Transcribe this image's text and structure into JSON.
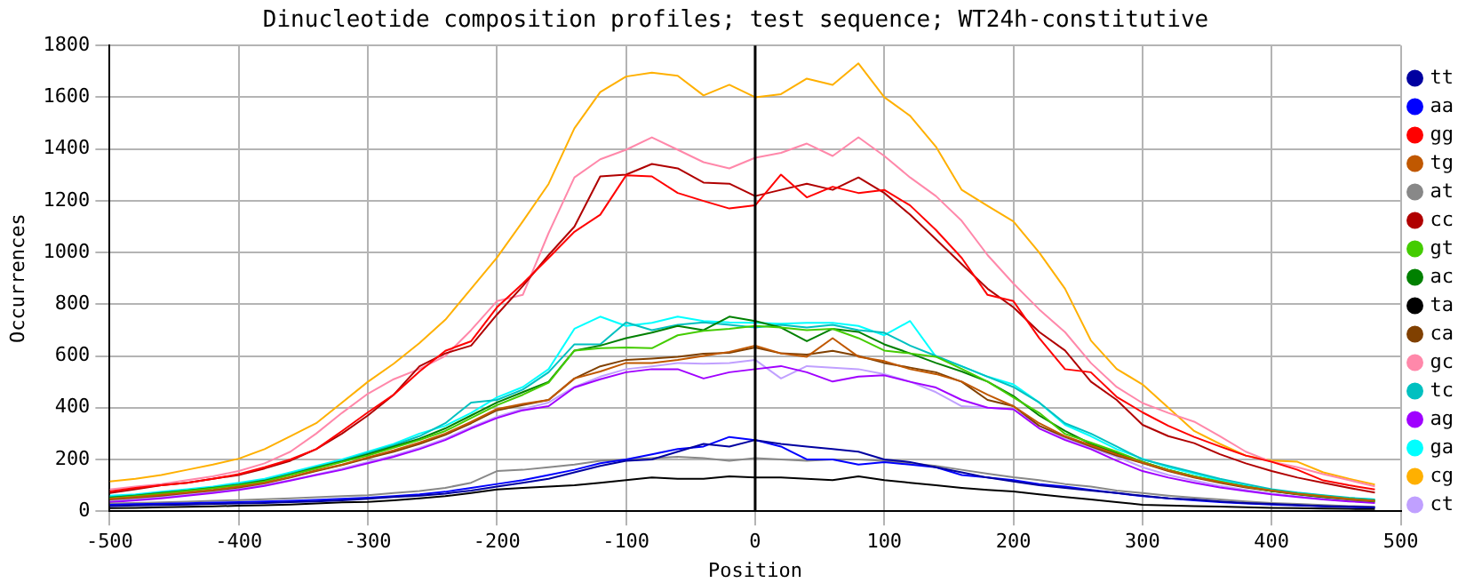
{
  "chart_data": {
    "type": "line",
    "title": "Dinucleotide composition profiles; test sequence; WT24h-constitutive",
    "xlabel": "Position",
    "ylabel": "Occurrences",
    "x": [
      -500,
      -480,
      -460,
      -440,
      -420,
      -400,
      -380,
      -360,
      -340,
      -320,
      -300,
      -280,
      -260,
      -240,
      -220,
      -200,
      -180,
      -160,
      -140,
      -120,
      -100,
      -80,
      -60,
      -40,
      -20,
      0,
      20,
      40,
      60,
      80,
      100,
      120,
      140,
      160,
      180,
      200,
      220,
      240,
      260,
      280,
      300,
      320,
      340,
      360,
      380,
      400,
      420,
      440,
      460,
      480
    ],
    "xlim": [
      -500,
      500
    ],
    "xticks": [
      -500,
      -400,
      -300,
      -200,
      -100,
      0,
      100,
      200,
      300,
      400,
      500
    ],
    "ylim": [
      0,
      1800
    ],
    "yticks": [
      0,
      200,
      400,
      600,
      800,
      1000,
      1200,
      1400,
      1600,
      1800
    ],
    "grid": true,
    "legend": "right",
    "line_style": "solid",
    "ref_lines": [
      {
        "axis": "x",
        "value": 0,
        "color": "#000000"
      }
    ],
    "series": [
      {
        "name": "tt",
        "color": "#0000a0",
        "values": [
          20,
          22,
          24,
          26,
          28,
          30,
          32,
          35,
          38,
          42,
          48,
          55,
          60,
          68,
          80,
          95,
          110,
          125,
          150,
          175,
          195,
          200,
          230,
          260,
          250,
          275,
          260,
          250,
          240,
          230,
          200,
          190,
          170,
          150,
          130,
          115,
          100,
          90,
          80,
          70,
          60,
          50,
          45,
          38,
          32,
          28,
          24,
          20,
          18,
          15
        ]
      },
      {
        "name": "aa",
        "color": "#0000ff",
        "values": [
          25,
          27,
          29,
          31,
          33,
          35,
          38,
          40,
          44,
          48,
          52,
          58,
          65,
          75,
          90,
          105,
          120,
          140,
          160,
          185,
          200,
          220,
          240,
          250,
          287,
          275,
          250,
          200,
          200,
          180,
          190,
          180,
          170,
          140,
          130,
          120,
          105,
          95,
          82,
          70,
          58,
          50,
          42,
          35,
          30,
          26,
          22,
          19,
          16,
          14
        ]
      },
      {
        "name": "gg",
        "color": "#ff0000",
        "values": [
          76,
          90,
          100,
          110,
          125,
          143,
          170,
          200,
          240,
          310,
          382,
          450,
          540,
          620,
          657,
          788,
          880,
          979,
          1080,
          1146,
          1298,
          1294,
          1230,
          1199,
          1170,
          1182,
          1301,
          1213,
          1254,
          1230,
          1242,
          1182,
          1087,
          979,
          836,
          812,
          669,
          549,
          537,
          442,
          382,
          330,
          287,
          250,
          215,
          191,
          160,
          119,
          100,
          84
        ]
      },
      {
        "name": "tg",
        "color": "#c05800",
        "values": [
          48,
          55,
          63,
          72,
          82,
          95,
          110,
          132,
          158,
          180,
          208,
          235,
          265,
          300,
          345,
          395,
          415,
          430,
          513,
          540,
          573,
          573,
          585,
          600,
          616,
          640,
          610,
          597,
          669,
          597,
          580,
          549,
          530,
          501,
          450,
          406,
          340,
          290,
          255,
          220,
          188,
          158,
          132,
          112,
          94,
          80,
          67,
          57,
          47,
          40
        ]
      },
      {
        "name": "at",
        "color": "#888888",
        "values": [
          30,
          32,
          34,
          37,
          40,
          43,
          46,
          50,
          54,
          58,
          62,
          70,
          78,
          90,
          110,
          155,
          160,
          170,
          180,
          195,
          200,
          205,
          210,
          205,
          195,
          205,
          200,
          195,
          200,
          200,
          195,
          185,
          175,
          160,
          145,
          131,
          120,
          105,
          95,
          80,
          70,
          60,
          52,
          45,
          38,
          32,
          28,
          24,
          20,
          17
        ]
      },
      {
        "name": "cc",
        "color": "#b00000",
        "values": [
          70,
          85,
          100,
          110,
          125,
          140,
          165,
          195,
          240,
          300,
          370,
          450,
          560,
          610,
          640,
          760,
          870,
          990,
          1100,
          1294,
          1301,
          1342,
          1325,
          1270,
          1266,
          1218,
          1242,
          1266,
          1242,
          1290,
          1230,
          1146,
          1051,
          955,
          860,
          788,
          693,
          621,
          501,
          430,
          334,
          290,
          263,
          220,
          185,
          155,
          130,
          110,
          90,
          72
        ]
      },
      {
        "name": "gt",
        "color": "#44cc00",
        "values": [
          50,
          58,
          68,
          78,
          88,
          100,
          115,
          140,
          165,
          190,
          215,
          245,
          275,
          310,
          360,
          410,
          450,
          497,
          621,
          630,
          633,
          630,
          680,
          697,
          705,
          716,
          710,
          700,
          705,
          669,
          621,
          610,
          597,
          550,
          501,
          440,
          380,
          299,
          265,
          230,
          191,
          160,
          135,
          115,
          95,
          80,
          68,
          58,
          48,
          40
        ]
      },
      {
        "name": "ac",
        "color": "#008000",
        "values": [
          52,
          60,
          70,
          80,
          90,
          102,
          118,
          142,
          168,
          192,
          220,
          250,
          280,
          320,
          370,
          420,
          460,
          500,
          621,
          640,
          669,
          690,
          716,
          700,
          752,
          735,
          710,
          657,
          705,
          693,
          645,
          610,
          573,
          540,
          501,
          445,
          370,
          310,
          260,
          225,
          191,
          160,
          135,
          112,
          95,
          78,
          66,
          55,
          47,
          40
        ]
      },
      {
        "name": "ta",
        "color": "#000000",
        "values": [
          12,
          13,
          15,
          17,
          19,
          21,
          23,
          26,
          30,
          34,
          36,
          42,
          50,
          58,
          70,
          84,
          90,
          95,
          100,
          110,
          120,
          130,
          125,
          125,
          135,
          130,
          130,
          125,
          120,
          135,
          120,
          110,
          100,
          90,
          82,
          76,
          65,
          55,
          45,
          35,
          25,
          22,
          20,
          18,
          15,
          13,
          12,
          10,
          9,
          8
        ]
      },
      {
        "name": "ca",
        "color": "#804000",
        "values": [
          45,
          52,
          60,
          70,
          80,
          92,
          108,
          130,
          155,
          178,
          205,
          230,
          260,
          295,
          340,
          390,
          410,
          430,
          513,
          560,
          585,
          590,
          597,
          609,
          612,
          633,
          610,
          605,
          620,
          600,
          573,
          555,
          537,
          500,
          430,
          406,
          330,
          287,
          250,
          215,
          186,
          155,
          130,
          110,
          92,
          78,
          65,
          55,
          45,
          38
        ]
      },
      {
        "name": "gc",
        "color": "#ff88aa",
        "values": [
          84,
          95,
          105,
          120,
          135,
          155,
          185,
          230,
          300,
          380,
          454,
          510,
          550,
          600,
          700,
          812,
          836,
          1075,
          1290,
          1360,
          1397,
          1445,
          1397,
          1349,
          1325,
          1366,
          1385,
          1421,
          1373,
          1445,
          1373,
          1290,
          1218,
          1122,
          990,
          880,
          780,
          692,
          573,
          480,
          418,
          380,
          346,
          290,
          230,
          191,
          170,
          143,
          120,
          96
        ]
      },
      {
        "name": "tc",
        "color": "#00c0c0",
        "values": [
          55,
          62,
          72,
          80,
          92,
          105,
          120,
          145,
          170,
          195,
          225,
          255,
          290,
          340,
          420,
          430,
          470,
          537,
          645,
          645,
          730,
          700,
          720,
          730,
          720,
          710,
          720,
          710,
          720,
          700,
          690,
          640,
          600,
          560,
          520,
          480,
          420,
          340,
          300,
          250,
          200,
          175,
          150,
          125,
          105,
          85,
          72,
          62,
          52,
          45
        ]
      },
      {
        "name": "ag",
        "color": "#a000ff",
        "values": [
          35,
          42,
          50,
          60,
          70,
          82,
          98,
          118,
          140,
          160,
          185,
          210,
          240,
          275,
          320,
          360,
          390,
          406,
          478,
          510,
          537,
          549,
          549,
          513,
          537,
          549,
          561,
          537,
          501,
          520,
          525,
          500,
          478,
          430,
          400,
          394,
          320,
          275,
          240,
          195,
          155,
          130,
          110,
          92,
          78,
          65,
          55,
          45,
          38,
          32
        ]
      },
      {
        "name": "ga",
        "color": "#00ffff",
        "values": [
          60,
          65,
          75,
          85,
          95,
          110,
          125,
          150,
          175,
          200,
          230,
          260,
          300,
          330,
          380,
          440,
          480,
          549,
          705,
          752,
          716,
          728,
          752,
          735,
          730,
          728,
          725,
          728,
          728,
          716,
          680,
          735,
          597,
          560,
          520,
          490,
          420,
          334,
          290,
          240,
          203,
          170,
          145,
          120,
          100,
          80,
          70,
          60,
          50,
          45
        ]
      },
      {
        "name": "cg",
        "color": "#ffb000",
        "values": [
          115,
          125,
          140,
          160,
          180,
          203,
          240,
          290,
          340,
          420,
          500,
          570,
          650,
          740,
          860,
          980,
          1120,
          1265,
          1480,
          1620,
          1680,
          1695,
          1683,
          1607,
          1648,
          1600,
          1612,
          1672,
          1648,
          1731,
          1600,
          1528,
          1409,
          1242,
          1180,
          1120,
          1000,
          860,
          660,
          550,
          490,
          400,
          310,
          260,
          215,
          196,
          191,
          150,
          125,
          103
        ]
      },
      {
        "name": "ct",
        "color": "#c0a0ff",
        "values": [
          40,
          47,
          55,
          64,
          74,
          86,
          102,
          120,
          142,
          165,
          190,
          215,
          245,
          280,
          325,
          365,
          395,
          420,
          480,
          520,
          549,
          560,
          573,
          570,
          573,
          585,
          513,
          561,
          555,
          549,
          530,
          501,
          460,
          406,
          400,
          394,
          330,
          280,
          245,
          210,
          170,
          140,
          118,
          98,
          82,
          68,
          57,
          47,
          40,
          34
        ]
      }
    ]
  }
}
